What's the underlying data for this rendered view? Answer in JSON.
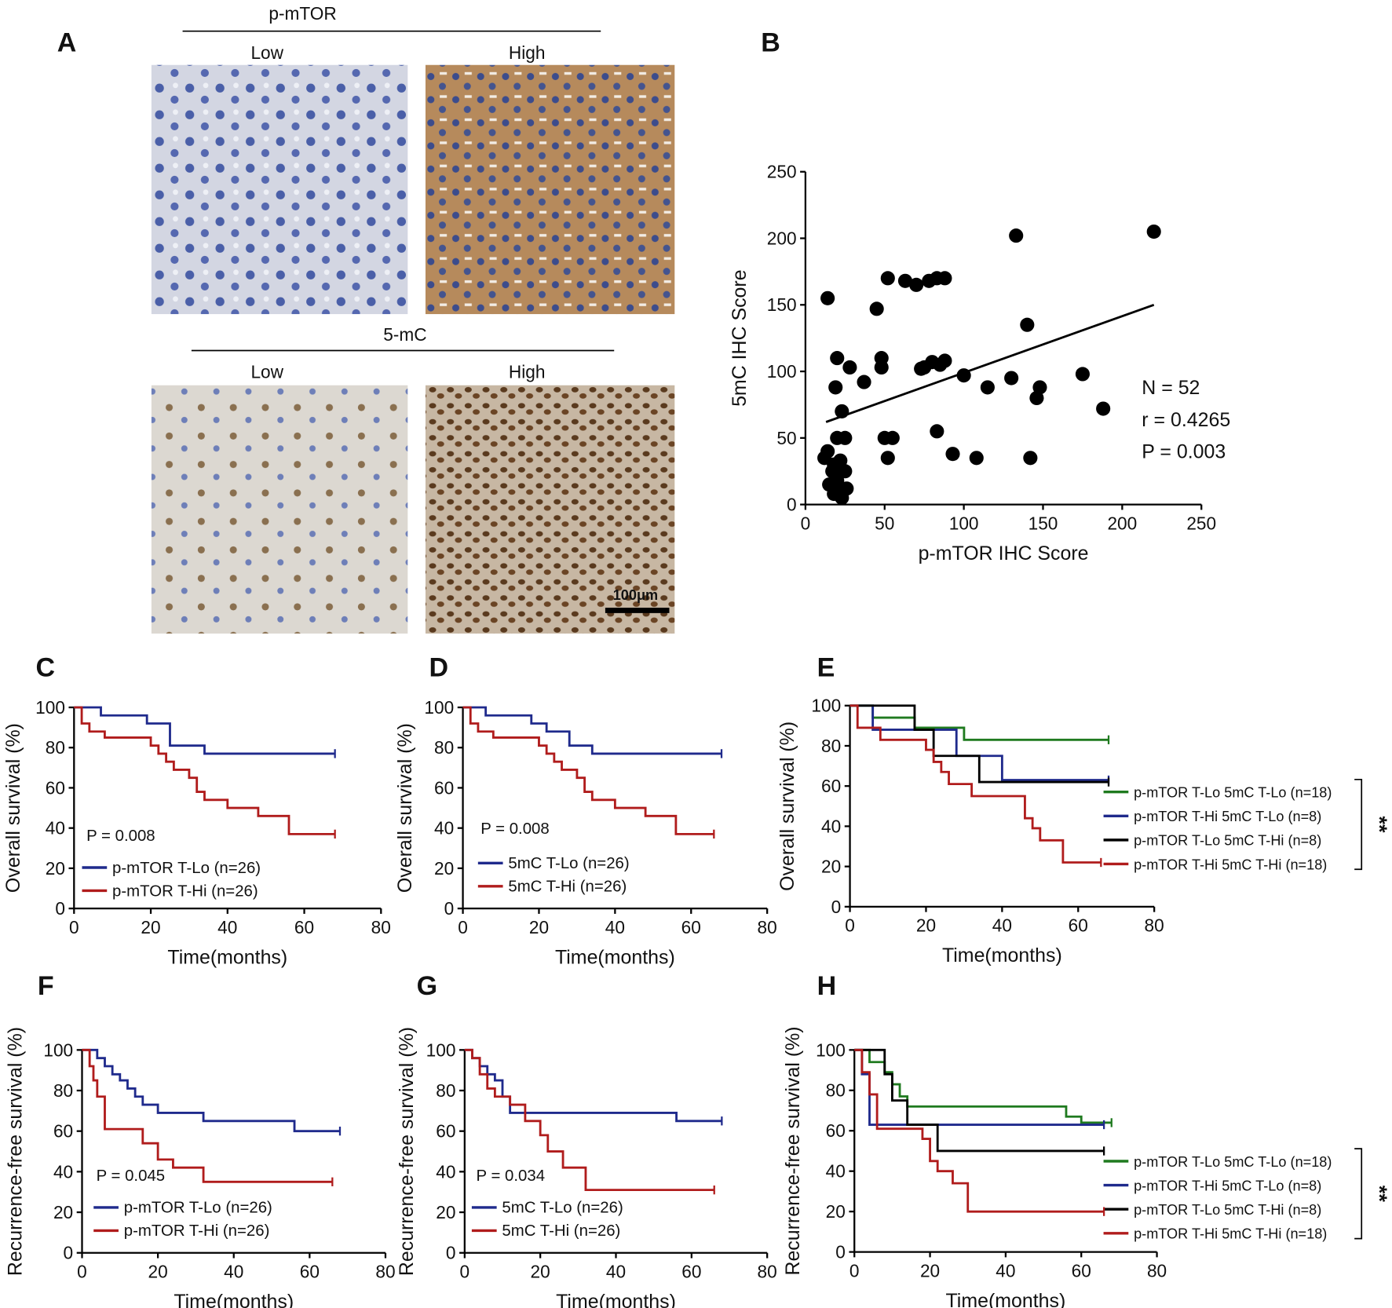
{
  "panel_a": {
    "letter": "A",
    "rows": [
      {
        "marker": "p-mTOR",
        "columns": [
          "Low",
          "High"
        ]
      },
      {
        "marker": "5-mC",
        "columns": [
          "Low",
          "High"
        ]
      }
    ],
    "scale_bar": "100μm"
  },
  "chart_data": [
    {
      "type": "scatter",
      "panel": "B",
      "x_label": "p-mTOR IHC Score",
      "y_label": "5mC IHC Score",
      "color": "#000000",
      "x": [
        14,
        20,
        19,
        23,
        28,
        37,
        14,
        18,
        20,
        25,
        15,
        20,
        22,
        23,
        22,
        25,
        17,
        20,
        45,
        48,
        48,
        50,
        55,
        52,
        52,
        63,
        70,
        78,
        83,
        75,
        73,
        85,
        88,
        80,
        83,
        93,
        100,
        108,
        115,
        130,
        133,
        140,
        146,
        148,
        142,
        175,
        188,
        220,
        88,
        12,
        18,
        26
      ],
      "values": [
        155,
        110,
        88,
        70,
        103,
        92,
        40,
        30,
        50,
        50,
        15,
        22,
        10,
        5,
        33,
        25,
        25,
        18,
        147,
        110,
        103,
        50,
        50,
        35,
        170,
        168,
        165,
        168,
        170,
        103,
        102,
        105,
        108,
        107,
        55,
        38,
        97,
        35,
        88,
        95,
        202,
        135,
        80,
        88,
        35,
        98,
        72,
        205,
        170,
        35,
        8,
        12
      ],
      "fit": {
        "x": [
          13,
          220
        ],
        "values": [
          62,
          150
        ]
      },
      "annotations": [
        "N = 52",
        "r = 0.4265",
        "P = 0.003"
      ],
      "xlim": [
        0,
        250
      ],
      "xticks": [
        0,
        50,
        100,
        150,
        200,
        250
      ],
      "ylim": [
        0,
        250
      ],
      "yticks": [
        0,
        50,
        100,
        150,
        200,
        250
      ]
    },
    {
      "type": "step",
      "panel": "C",
      "x_label": "Time(months)",
      "y_label": "Overall survival (%)",
      "annotation": "P = 0.008",
      "series": [
        {
          "name": "p-mTOR T-Lo (n=26)",
          "color": "#1f2a8c",
          "x": [
            0,
            7,
            19,
            25,
            34,
            68
          ],
          "values": [
            100,
            96,
            92,
            81,
            77,
            77
          ]
        },
        {
          "name": "p-mTOR T-Hi (n=26)",
          "color": "#b01c1c",
          "x": [
            0,
            2,
            4,
            8,
            20,
            22,
            24,
            26,
            30,
            32,
            34,
            40,
            48,
            56,
            68
          ],
          "values": [
            100,
            92,
            88,
            85,
            81,
            77,
            73,
            69,
            65,
            58,
            54,
            50,
            46,
            37,
            37
          ]
        }
      ],
      "xlim": [
        0,
        80
      ],
      "xticks": [
        0,
        20,
        40,
        60,
        80
      ],
      "ylim": [
        0,
        100
      ],
      "yticks": [
        0,
        20,
        40,
        60,
        80,
        100
      ]
    },
    {
      "type": "step",
      "panel": "D",
      "x_label": "Time(months)",
      "y_label": "Overall survival (%)",
      "annotation": "P = 0.008",
      "series": [
        {
          "name": "5mC T-Lo (n=26)",
          "color": "#1f2a8c",
          "x": [
            0,
            6,
            18,
            22,
            28,
            34,
            68
          ],
          "values": [
            100,
            96,
            92,
            88,
            81,
            77,
            77
          ]
        },
        {
          "name": "5mC T-Hi (n=26)",
          "color": "#b01c1c",
          "x": [
            0,
            2,
            4,
            8,
            20,
            22,
            24,
            26,
            30,
            32,
            34,
            40,
            48,
            56,
            66
          ],
          "values": [
            100,
            92,
            88,
            85,
            81,
            77,
            73,
            69,
            65,
            58,
            54,
            50,
            46,
            37,
            37
          ]
        }
      ],
      "xlim": [
        0,
        80
      ],
      "xticks": [
        0,
        20,
        40,
        60,
        80
      ],
      "ylim": [
        0,
        100
      ],
      "yticks": [
        0,
        20,
        40,
        60,
        80,
        100
      ]
    },
    {
      "type": "step",
      "panel": "E",
      "x_label": "Time(months)",
      "y_label": "Overall survival (%)",
      "significance": "**",
      "series": [
        {
          "name": "p-mTOR T-Lo 5mC T-Lo (n=18)",
          "color": "#1f7a1f",
          "x": [
            0,
            6,
            17,
            30,
            68
          ],
          "values": [
            100,
            94,
            89,
            83,
            83
          ]
        },
        {
          "name": "p-mTOR T-Hi 5mC T-Lo (n=8)",
          "color": "#1f2a8c",
          "x": [
            0,
            6,
            28,
            40,
            68
          ],
          "values": [
            100,
            88,
            75,
            63,
            63
          ]
        },
        {
          "name": "p-mTOR T-Lo 5mC T-Hi (n=8)",
          "color": "#000000",
          "x": [
            0,
            17,
            22,
            34,
            68
          ],
          "values": [
            100,
            88,
            75,
            62,
            62
          ]
        },
        {
          "name": "p-mTOR T-Hi 5mC T-Hi (n=18)",
          "color": "#b01c1c",
          "x": [
            0,
            2,
            8,
            20,
            22,
            24,
            26,
            32,
            46,
            48,
            50,
            56,
            66
          ],
          "values": [
            100,
            89,
            83,
            78,
            72,
            67,
            61,
            55,
            44,
            39,
            33,
            22,
            22
          ]
        }
      ],
      "xlim": [
        0,
        80
      ],
      "xticks": [
        0,
        20,
        40,
        60,
        80
      ],
      "ylim": [
        0,
        100
      ],
      "yticks": [
        0,
        20,
        40,
        60,
        80,
        100
      ]
    },
    {
      "type": "step",
      "panel": "F",
      "x_label": "Time(months)",
      "y_label": "Recurrence-free survival (%)",
      "annotation": "P = 0.045",
      "series": [
        {
          "name": "p-mTOR T-Lo (n=26)",
          "color": "#1f2a8c",
          "x": [
            0,
            4,
            6,
            8,
            10,
            12,
            14,
            16,
            20,
            32,
            56,
            68
          ],
          "values": [
            100,
            96,
            92,
            88,
            85,
            81,
            77,
            73,
            69,
            65,
            60,
            60
          ]
        },
        {
          "name": "p-mTOR T-Hi (n=26)",
          "color": "#b01c1c",
          "x": [
            0,
            2,
            3,
            4,
            6,
            16,
            20,
            24,
            32,
            66
          ],
          "values": [
            100,
            92,
            85,
            77,
            61,
            54,
            46,
            42,
            35,
            35
          ]
        }
      ],
      "xlim": [
        0,
        80
      ],
      "xticks": [
        0,
        20,
        40,
        60,
        80
      ],
      "ylim": [
        0,
        100
      ],
      "yticks": [
        0,
        20,
        40,
        60,
        80,
        100
      ]
    },
    {
      "type": "step",
      "panel": "G",
      "x_label": "Time(months)",
      "y_label": "Recurrence-free survival (%)",
      "annotation": "P = 0.034",
      "series": [
        {
          "name": "5mC T-Lo (n=26)",
          "color": "#1f2a8c",
          "x": [
            0,
            2,
            4,
            6,
            8,
            10,
            12,
            56,
            68
          ],
          "values": [
            100,
            96,
            92,
            88,
            85,
            77,
            69,
            65,
            65
          ]
        },
        {
          "name": "5mC T-Hi (n=26)",
          "color": "#b01c1c",
          "x": [
            0,
            2,
            4,
            6,
            8,
            12,
            16,
            20,
            22,
            26,
            32,
            66
          ],
          "values": [
            100,
            96,
            88,
            81,
            77,
            73,
            65,
            58,
            50,
            42,
            31,
            31
          ]
        }
      ],
      "xlim": [
        0,
        80
      ],
      "xticks": [
        0,
        20,
        40,
        60,
        80
      ],
      "ylim": [
        0,
        100
      ],
      "yticks": [
        0,
        20,
        40,
        60,
        80,
        100
      ]
    },
    {
      "type": "step",
      "panel": "H",
      "x_label": "Time(months)",
      "y_label": "Recurrence-free survival (%)",
      "significance": "**",
      "series": [
        {
          "name": "p-mTOR T-Lo 5mC T-Lo (n=18)",
          "color": "#1f7a1f",
          "x": [
            0,
            4,
            8,
            10,
            12,
            14,
            56,
            60,
            68
          ],
          "values": [
            100,
            94,
            89,
            83,
            77,
            72,
            67,
            64,
            64
          ]
        },
        {
          "name": "p-mTOR T-Hi 5mC T-Lo (n=8)",
          "color": "#1f2a8c",
          "x": [
            0,
            2,
            4,
            66
          ],
          "values": [
            100,
            88,
            63,
            63
          ]
        },
        {
          "name": "p-mTOR T-Lo 5mC T-Hi (n=8)",
          "color": "#000000",
          "x": [
            0,
            8,
            10,
            14,
            22,
            66
          ],
          "values": [
            100,
            88,
            75,
            63,
            50,
            50
          ]
        },
        {
          "name": "p-mTOR T-Hi 5mC T-Hi (n=18)",
          "color": "#b01c1c",
          "x": [
            0,
            2,
            4,
            6,
            18,
            20,
            22,
            26,
            30,
            66
          ],
          "values": [
            100,
            89,
            78,
            61,
            56,
            45,
            40,
            34,
            20,
            20
          ]
        }
      ],
      "xlim": [
        0,
        80
      ],
      "xticks": [
        0,
        20,
        40,
        60,
        80
      ],
      "ylim": [
        0,
        100
      ],
      "yticks": [
        0,
        20,
        40,
        60,
        80,
        100
      ]
    }
  ]
}
